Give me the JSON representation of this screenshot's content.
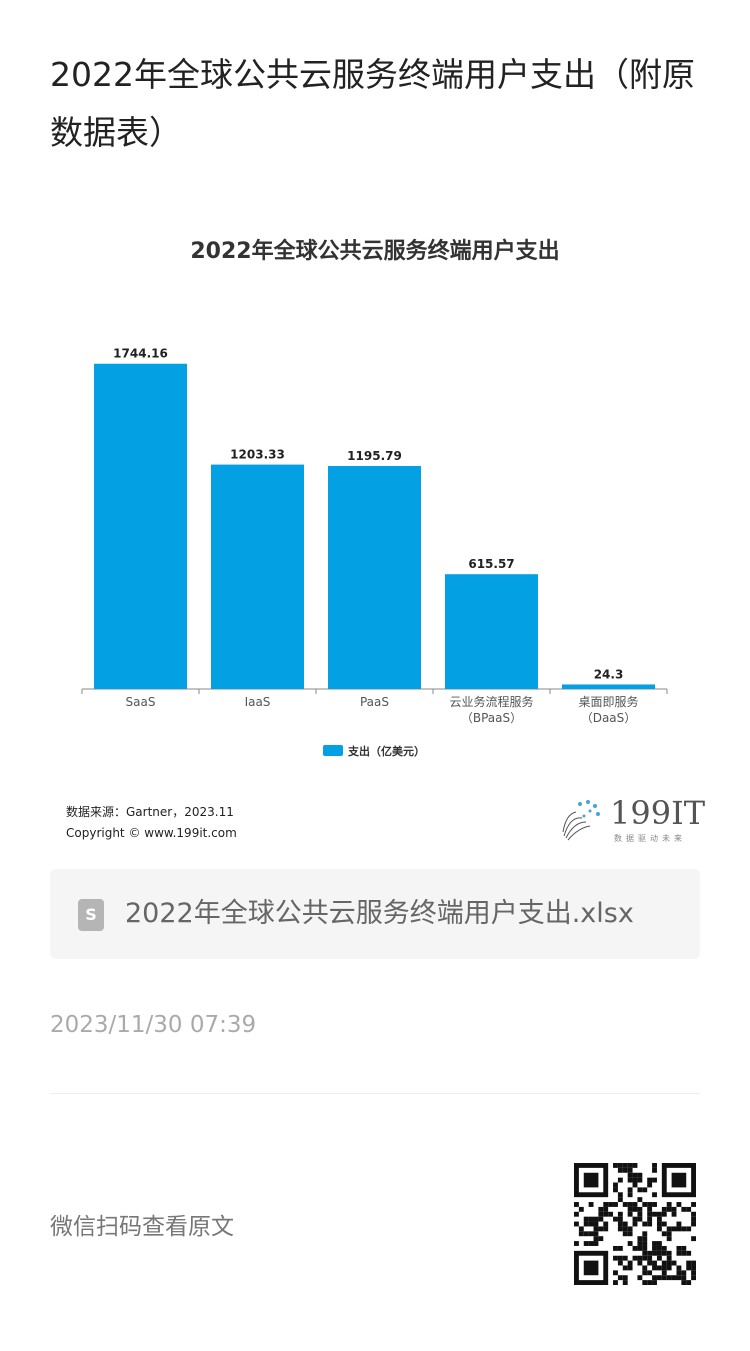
{
  "article": {
    "title": "2022年全球公共云服务终端用户支出（附原数据表）"
  },
  "chart_data": {
    "type": "bar",
    "title": "2022年全球公共云服务终端用户支出",
    "categories": [
      "SaaS",
      "IaaS",
      "PaaS",
      "云业务流程服务（BPaaS）",
      "桌面即服务（DaaS）"
    ],
    "category_lines": [
      [
        "SaaS"
      ],
      [
        "IaaS"
      ],
      [
        "PaaS"
      ],
      [
        "云业务流程服务",
        "（BPaaS）"
      ],
      [
        "桌面即服务",
        "（DaaS）"
      ]
    ],
    "series": [
      {
        "name": "支出（亿美元）",
        "values": [
          1744.16,
          1203.33,
          1195.79,
          615.57,
          24.3
        ]
      }
    ],
    "value_labels": [
      "1744.16",
      "1203.33",
      "1195.79",
      "615.57",
      "24.3"
    ],
    "color": "#03a0e3",
    "ylim": [
      0,
      1850
    ],
    "grid": false,
    "legend": "bottom"
  },
  "footer": {
    "source": "数据来源：Gartner，2023.11",
    "copyright": "Copyright © www.199it.com",
    "logo_text": "199IT",
    "logo_sub": "数据驱动未来"
  },
  "attachment": {
    "icon": "spreadsheet-file-icon",
    "icon_letter": "S",
    "name": "2022年全球公共云服务终端用户支出.xlsx"
  },
  "timestamp": "2023/11/30 07:39",
  "wechat": {
    "label": "微信扫码查看原文"
  }
}
